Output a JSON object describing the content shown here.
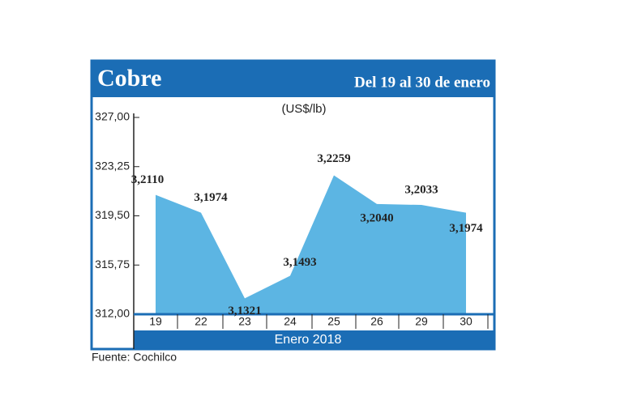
{
  "chart_data": {
    "type": "area",
    "title": "Cobre",
    "subtitle": "Del 19 al 30 de enero",
    "unit_label": "(US$/lb)",
    "x_label": "Enero 2018",
    "source": "Fuente: Cochilco",
    "categories": [
      "19",
      "22",
      "23",
      "24",
      "25",
      "26",
      "29",
      "30"
    ],
    "values": [
      321.1,
      319.74,
      313.21,
      314.93,
      322.59,
      320.4,
      320.33,
      319.74
    ],
    "value_labels": [
      "3,2110",
      "3,1974",
      "3,1321",
      "3,1493",
      "3,2259",
      "3,2040",
      "3,2033",
      "3,1974"
    ],
    "color": "#5cb5e3",
    "ylim": [
      312,
      327
    ],
    "yticks": [
      {
        "value": 312,
        "label": "312,00"
      },
      {
        "value": 315.75,
        "label": "315,75"
      },
      {
        "value": 319.5,
        "label": "319,50"
      },
      {
        "value": 323.25,
        "label": "323,25"
      },
      {
        "value": 327,
        "label": "327,00"
      }
    ]
  }
}
